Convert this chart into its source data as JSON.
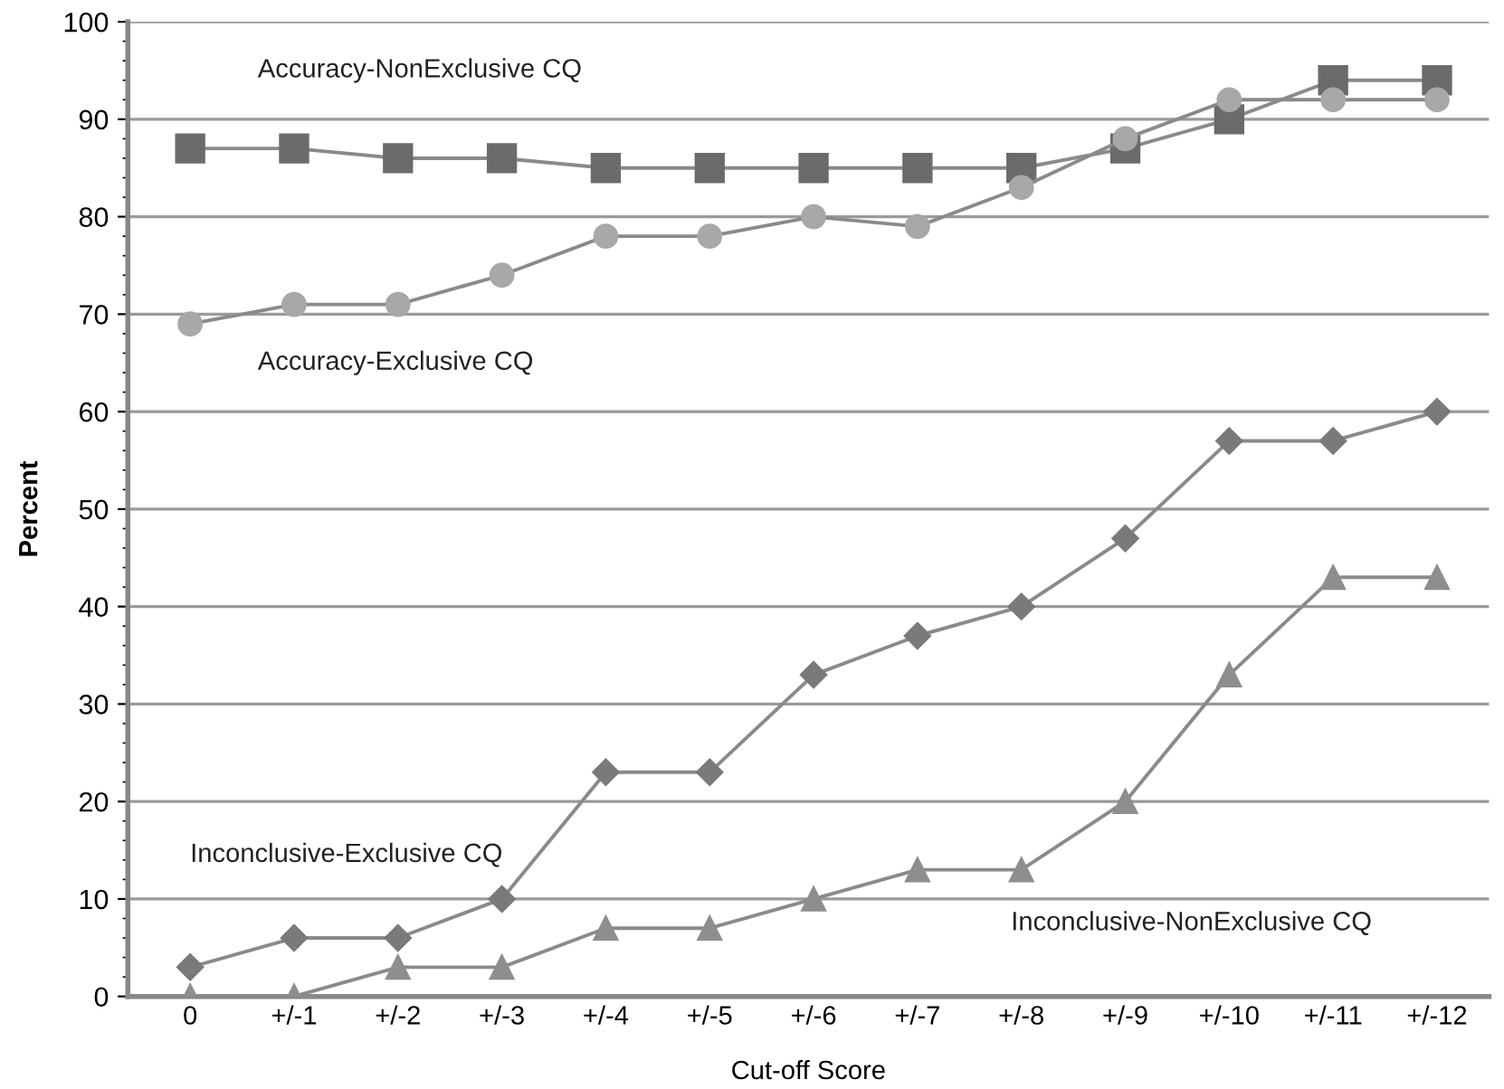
{
  "chart_data": {
    "type": "line",
    "xlabel": "Cut-off Score",
    "ylabel": "Percent",
    "categories": [
      "0",
      "+/-1",
      "+/-2",
      "+/-3",
      "+/-4",
      "+/-5",
      "+/-6",
      "+/-7",
      "+/-8",
      "+/-9",
      "+/-10",
      "+/-11",
      "+/-12"
    ],
    "series": [
      {
        "name": "Accuracy-NonExclusive CQ",
        "color": "#6b6b6b",
        "marker": "square",
        "values": [
          87,
          87,
          86,
          86,
          85,
          85,
          85,
          85,
          85,
          87,
          90,
          94,
          94
        ]
      },
      {
        "name": "Accuracy-Exclusive CQ",
        "color": "#a8a8a8",
        "marker": "circle",
        "values": [
          69,
          71,
          71,
          74,
          78,
          78,
          80,
          79,
          83,
          88,
          92,
          92,
          92
        ]
      },
      {
        "name": "Inconclusive-Exclusive CQ",
        "color": "#7a7a7a",
        "marker": "diamond",
        "values": [
          3,
          6,
          6,
          10,
          23,
          23,
          33,
          37,
          40,
          47,
          57,
          57,
          60
        ]
      },
      {
        "name": "Inconclusive-NonExclusive CQ",
        "color": "#8e8e8e",
        "marker": "triangle",
        "values": [
          0,
          0,
          3,
          3,
          7,
          7,
          10,
          13,
          13,
          20,
          33,
          43,
          43
        ]
      }
    ],
    "ylim": [
      0,
      100
    ],
    "yticks": [
      0,
      10,
      20,
      30,
      40,
      50,
      60,
      70,
      80,
      90,
      100
    ],
    "grid": "y",
    "legend": false,
    "line_style": "solid"
  }
}
